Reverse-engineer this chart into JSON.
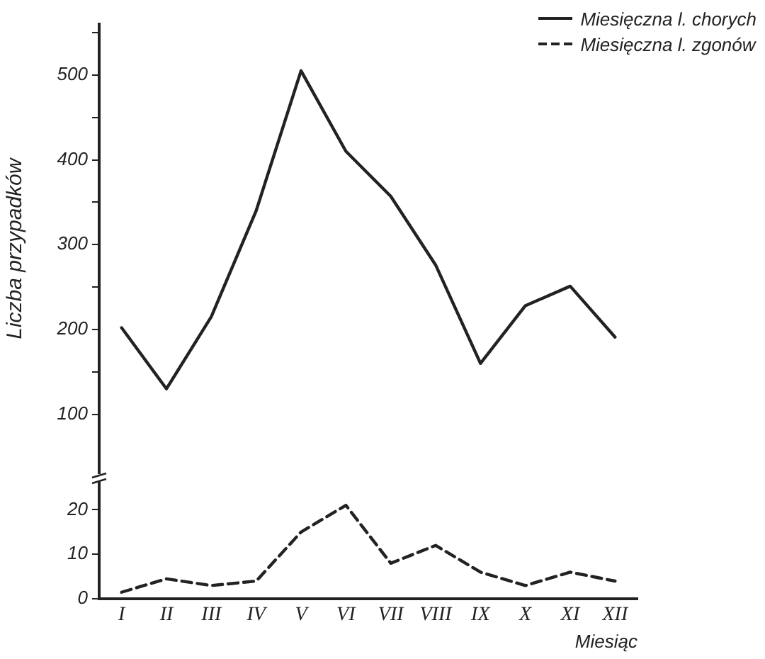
{
  "chart_data": [
    {
      "type": "line",
      "ylabel": "Liczba przypadków",
      "categories": [
        null,
        null,
        null,
        null,
        null,
        null,
        null,
        null,
        null,
        null,
        null,
        null
      ],
      "series": [
        {
          "name": "Miesięczna l. chorych",
          "color": "#222222",
          "values": [
            202,
            130,
            215,
            340,
            505,
            410,
            357,
            276,
            160,
            228,
            251,
            191
          ]
        }
      ],
      "ylim": [
        30,
        560
      ],
      "yticks": [
        100,
        {
          "value": 150,
          "label": null
        },
        200,
        {
          "value": 250,
          "label": null
        },
        300,
        {
          "value": 350,
          "label": null
        },
        400,
        {
          "value": 450,
          "label": null
        },
        500,
        {
          "value": 550,
          "label": null
        }
      ],
      "tick_labels": "y",
      "grid": false,
      "legend": "top right",
      "marker": "none",
      "line_style": "solid"
    },
    {
      "type": "line",
      "xlabel": "Miesiąc",
      "categories": [
        "I",
        "II",
        "III",
        "IV",
        "V",
        "VI",
        "VII",
        "VIII",
        "IX",
        "X",
        "XI",
        "XII"
      ],
      "series": [
        {
          "name": "Miesięczna l. zgonów",
          "color": "#222222",
          "values": [
            1.5,
            4.5,
            3,
            4,
            15,
            21,
            8,
            12,
            6,
            3,
            6,
            4
          ]
        }
      ],
      "ylim": [
        0,
        26
      ],
      "yticks": [
        0,
        10,
        20
      ],
      "grid": false,
      "legend": "top right",
      "marker": "none",
      "line_style": "dashed"
    }
  ]
}
